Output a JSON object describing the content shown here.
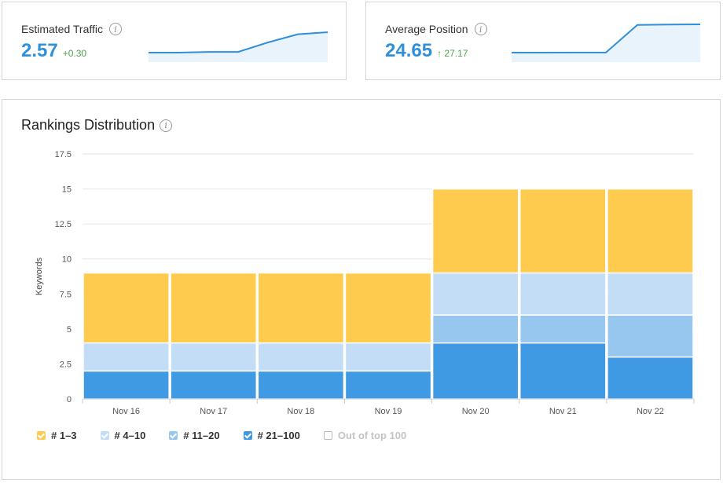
{
  "traffic": {
    "title": "Estimated Traffic",
    "value": "2.57",
    "delta": "+0.30",
    "trend": [
      2.27,
      2.27,
      2.28,
      2.28,
      2.42,
      2.54,
      2.57
    ]
  },
  "position": {
    "title": "Average Position",
    "value": "24.65",
    "delta_arrow": "↑",
    "delta": "27.17",
    "trend": [
      -2.52,
      -2.52,
      -2.45,
      -2.45,
      24.1,
      24.5,
      24.65
    ]
  },
  "rankings": {
    "title": "Rankings Distribution"
  },
  "colors": {
    "accent": "#2f8fd8",
    "positive": "#4aa34a",
    "top3": "#ffcb4f",
    "top4_10": "#c2ddf5",
    "top11_20": "#97c7ee",
    "top21_100": "#3f9ae3"
  },
  "chart_data": {
    "type": "bar",
    "stacked": true,
    "ylabel": "Keywords",
    "ylim": [
      0,
      17.5
    ],
    "yticks": [
      "0",
      "2.5",
      "5",
      "7.5",
      "10",
      "12.5",
      "15",
      "17.5"
    ],
    "categories": [
      "Nov 16",
      "Nov 17",
      "Nov 18",
      "Nov 19",
      "Nov 20",
      "Nov 21",
      "Nov 22"
    ],
    "series": [
      {
        "name": "# 21–100",
        "color": "#3f9ae3",
        "values": [
          2,
          2,
          2,
          2,
          4,
          4,
          3
        ]
      },
      {
        "name": "# 11–20",
        "color": "#97c7ee",
        "values": [
          0,
          0,
          0,
          0,
          2,
          2,
          3
        ]
      },
      {
        "name": "# 4–10",
        "color": "#c2ddf5",
        "values": [
          2,
          2,
          2,
          2,
          3,
          3,
          3
        ]
      },
      {
        "name": "# 1–3",
        "color": "#ffcb4f",
        "values": [
          5,
          5,
          5,
          5,
          6,
          6,
          6
        ]
      }
    ],
    "legend": [
      {
        "name": "# 1–3",
        "color": "#ffcb4f",
        "checked": true
      },
      {
        "name": "# 4–10",
        "color": "#c2ddf5",
        "checked": true
      },
      {
        "name": "# 11–20",
        "color": "#97c7ee",
        "checked": true
      },
      {
        "name": "# 21–100",
        "color": "#3f9ae3",
        "checked": true
      },
      {
        "name": "Out of top 100",
        "color": "#ffffff",
        "checked": false
      }
    ],
    "legend_position": "bottom-left",
    "grid": true
  }
}
